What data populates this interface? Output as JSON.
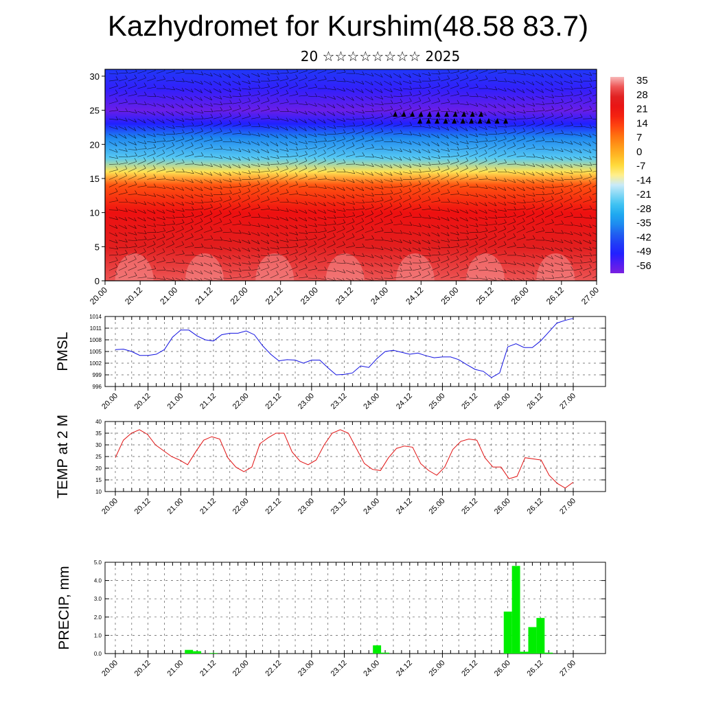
{
  "header": {
    "title": "Kazhydromet for Kurshim(48.58 83.7)",
    "subtitle": "20 ☆☆☆☆☆☆☆☆ 2025"
  },
  "colors": {
    "pmsl_line": "#1010e0",
    "temp_line": "#e01010",
    "precip_bar": "#00ee00",
    "axis": "#000000"
  },
  "chart_data": [
    {
      "type": "heatmap",
      "title": "",
      "xlabel": "",
      "ylabel": "",
      "x_ticks": [
        "20.00",
        "20.12",
        "21.00",
        "21.12",
        "22.00",
        "22.12",
        "23.00",
        "23.12",
        "24.00",
        "24.12",
        "25.00",
        "25.12",
        "26.00",
        "26.12",
        "27.00"
      ],
      "y_ticks": [
        0,
        5,
        10,
        15,
        20,
        25,
        30
      ],
      "ylim": [
        0,
        31
      ],
      "colorbar_labels": [
        35,
        28,
        21,
        14,
        7,
        0,
        -7,
        -14,
        -21,
        -28,
        -35,
        -42,
        -49,
        -56
      ],
      "colorbar_range": [
        -60,
        38
      ],
      "vertical_temperature_profile": [
        {
          "level": 0,
          "temp": 33
        },
        {
          "level": 5,
          "temp": 27
        },
        {
          "level": 10,
          "temp": 21
        },
        {
          "level": 14,
          "temp": 12
        },
        {
          "level": 16,
          "temp": -8
        },
        {
          "level": 18,
          "temp": -24
        },
        {
          "level": 21,
          "temp": -36
        },
        {
          "level": 23,
          "temp": -50
        },
        {
          "level": 25,
          "temp": -58
        },
        {
          "level": 28,
          "temp": -52
        },
        {
          "level": 31,
          "temp": -46
        }
      ],
      "overlay": "wind barbs"
    },
    {
      "type": "line",
      "ylabel": "PMSL",
      "x_ticks": [
        "20.00",
        "20.12",
        "21.00",
        "21.12",
        "22.00",
        "22.12",
        "23.00",
        "23.12",
        "24.00",
        "24.12",
        "25.00",
        "25.12",
        "26.00",
        "26.12",
        "27.00"
      ],
      "y_ticks": [
        996,
        999,
        1002,
        1005,
        1008,
        1011,
        1014
      ],
      "ylim": [
        996,
        1014
      ],
      "series": [
        {
          "values": [
            1005.5,
            1005.6,
            1005.0,
            1004.0,
            1004.0,
            1004.3,
            1005.5,
            1008.7,
            1010.5,
            1010.5,
            1009.0,
            1008.0,
            1007.7,
            1009.3,
            1009.7,
            1009.7,
            1010.3,
            1009.3,
            1006.5,
            1004.3,
            1002.6,
            1002.9,
            1002.8,
            1002.0,
            1002.8,
            1002.8,
            1000.8,
            999.0,
            999.1,
            999.5,
            1001.3,
            1000.9,
            1003.2,
            1005.0,
            1005.3,
            1004.8,
            1004.3,
            1004.6,
            1003.9,
            1003.4,
            1003.6,
            1003.6,
            1002.9,
            1001.6,
            1000.4,
            999.9,
            998.3,
            999.5,
            1006.2,
            1007.0,
            1006.0,
            1006.0,
            1007.7,
            1010.0,
            1012.3,
            1013.0,
            1013.5
          ]
        }
      ]
    },
    {
      "type": "line",
      "ylabel": "TEMP at 2 M",
      "x_ticks": [
        "20.00",
        "20.12",
        "21.00",
        "21.12",
        "22.00",
        "22.12",
        "23.00",
        "23.12",
        "24.00",
        "24.12",
        "25.00",
        "25.12",
        "26.00",
        "26.12",
        "27.00"
      ],
      "y_ticks": [
        10,
        15,
        20,
        25,
        30,
        35,
        40
      ],
      "ylim": [
        10,
        40
      ],
      "series": [
        {
          "values": [
            24.5,
            32.0,
            35.0,
            36.5,
            34.5,
            30.0,
            27.5,
            25.0,
            23.5,
            21.5,
            27.0,
            32.0,
            33.5,
            32.5,
            24.5,
            20.5,
            18.5,
            20.5,
            30.5,
            33.0,
            35.0,
            35.0,
            27.0,
            23.0,
            21.5,
            23.5,
            30.0,
            35.0,
            36.5,
            35.0,
            28.5,
            22.0,
            19.5,
            19.0,
            24.5,
            28.5,
            29.5,
            29.0,
            22.0,
            19.0,
            17.0,
            20.5,
            28.0,
            31.5,
            32.5,
            32.0,
            24.5,
            20.5,
            20.5,
            15.5,
            16.5,
            24.5,
            24.0,
            23.5,
            17.0,
            13.5,
            11.5,
            14.0
          ]
        }
      ]
    },
    {
      "type": "bar",
      "ylabel": "PRECIP, mm",
      "x_ticks": [
        "20.00",
        "20.12",
        "21.00",
        "21.12",
        "22.00",
        "22.12",
        "23.00",
        "23.12",
        "24.00",
        "24.12",
        "25.00",
        "25.12",
        "26.00",
        "26.12",
        "27.00"
      ],
      "y_ticks": [
        "0.0",
        "1.0",
        "2.0",
        "3.0",
        "4.0",
        "5.0"
      ],
      "ylim": [
        0,
        5
      ],
      "bar_step_hours": 3,
      "bars": [
        {
          "hour": 27,
          "value": 0.2
        },
        {
          "hour": 30,
          "value": 0.13
        },
        {
          "hour": 36,
          "value": 0.03
        },
        {
          "hour": 96,
          "value": 0.45
        },
        {
          "hour": 99,
          "value": 0.05
        },
        {
          "hour": 144,
          "value": 2.3
        },
        {
          "hour": 147,
          "value": 4.8
        },
        {
          "hour": 150,
          "value": 0.1
        },
        {
          "hour": 153,
          "value": 1.45
        },
        {
          "hour": 156,
          "value": 1.95
        },
        {
          "hour": 159,
          "value": 0.05
        }
      ]
    }
  ]
}
